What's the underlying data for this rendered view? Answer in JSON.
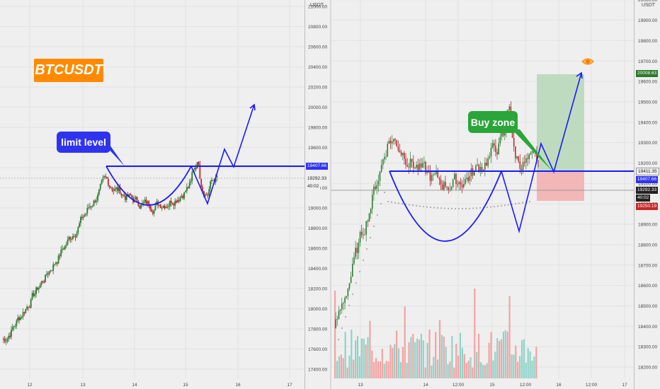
{
  "symbol": "BTCUSDT",
  "annotations": {
    "limit_level": "limit level",
    "buy_zone": "Buy zone"
  },
  "left_chart": {
    "currency": "USDT",
    "price_ticks": [
      "21000.00",
      "20800.00",
      "20600.00",
      "20400.00",
      "20200.00",
      "20000.00",
      "19800.00",
      "19600.00",
      "19400.00",
      "19200.00",
      "19000.00",
      "18800.00",
      "18600.00",
      "18400.00",
      "18200.00",
      "18000.00",
      "17800.00",
      "17600.00",
      "17400.00"
    ],
    "time_ticks": [
      "12",
      "13",
      "14",
      "15",
      "16",
      "17"
    ],
    "labels": {
      "level": "19407.66",
      "last": "19292.33",
      "countdown": "40:02"
    }
  },
  "right_chart": {
    "currency": "USDT",
    "price_ticks": [
      "20400.00",
      "20300.00",
      "20200.00",
      "20100.00",
      "20000.00",
      "19900.00",
      "19800.00",
      "19700.00",
      "19600.00",
      "19500.00",
      "19400.00",
      "19300.00",
      "19200.00",
      "19100.00",
      "19000.00",
      "18900.00",
      "18800.00",
      "18700.00",
      "18600.00",
      "18500.00",
      "18400.00",
      "18300.00",
      "18200.00"
    ],
    "time_ticks": [
      "13",
      "14",
      "12:00",
      "15",
      "12:00",
      "16",
      "12:00",
      "17"
    ],
    "labels": {
      "target": "20008.63",
      "level_a": "19411.35",
      "level_b": "19407.66",
      "last": "19292.33",
      "countdown": "40:02",
      "stop": "19250.19"
    }
  },
  "colors": {
    "up": "#26a69a",
    "down": "#ef5350",
    "level_line": "#1a1aff",
    "ticker_bg": "#ff8a00",
    "limit_label_bg": "#2f33ee",
    "buy_label_bg": "#2aa53a",
    "target_zone": "#b6d7b6",
    "stop_zone": "#f2b0b0"
  }
}
